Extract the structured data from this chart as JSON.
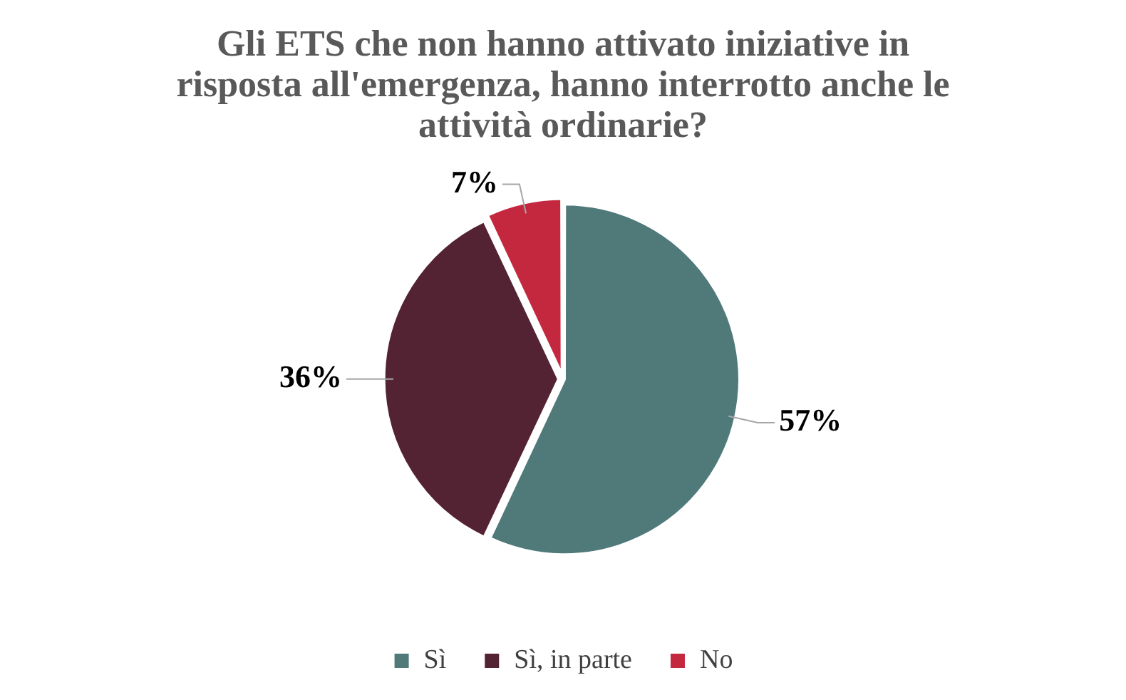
{
  "chart_data": {
    "type": "pie",
    "title": "Gli ETS che non hanno attivato iniziative in risposta all'emergenza, hanno interrotto anche le attività ordinarie?",
    "categories": [
      "Sì",
      "Sì, in parte",
      "No"
    ],
    "values": [
      57,
      36,
      7
    ],
    "colors": [
      "#50797a",
      "#532334",
      "#c4283f"
    ],
    "value_labels": [
      "57%",
      "36%",
      "7%"
    ],
    "legend": "bottom"
  }
}
